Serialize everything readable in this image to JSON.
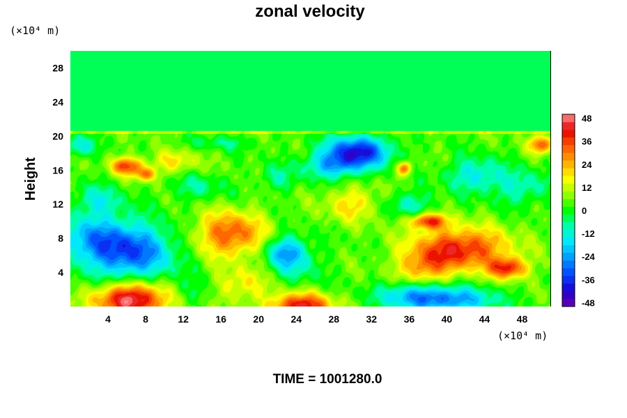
{
  "chart_data": {
    "type": "heatmap",
    "title": "zonal velocity",
    "ylabel": "Height",
    "xunit": "(×10⁴ m)",
    "yunit": "(×10⁴ m)",
    "footer": "TIME = 1001280.0",
    "xlim": [
      0,
      51
    ],
    "ylim": [
      0,
      30
    ],
    "x_ticks": [
      4,
      8,
      12,
      16,
      20,
      24,
      28,
      32,
      36,
      40,
      44,
      48
    ],
    "y_ticks": [
      4,
      8,
      12,
      16,
      20,
      24,
      28
    ],
    "colorbar": {
      "min": -50,
      "max": 50,
      "ticks": [
        48,
        36,
        24,
        12,
        0,
        -12,
        -24,
        -36,
        -48
      ],
      "colors": [
        "#6a00b0",
        "#1e00d2",
        "#0046ff",
        "#0096ff",
        "#00e6ff",
        "#00ffb4",
        "#00ff00",
        "#96ff00",
        "#ffff00",
        "#ffaa00",
        "#ff5a00",
        "#e60000",
        "#ff8c8c"
      ]
    },
    "field": {
      "background": 4,
      "upper_layer": {
        "from_height": 20.6,
        "value": -4
      },
      "features": [
        {
          "x": 6.5,
          "y": 0.8,
          "rx": 3.8,
          "ry": 2.0,
          "v": 46
        },
        {
          "x": 24.5,
          "y": 0.0,
          "rx": 3.2,
          "ry": 1.5,
          "v": 40
        },
        {
          "x": 6.5,
          "y": 6.4,
          "rx": 4.5,
          "ry": 3.3,
          "v": -34
        },
        {
          "x": 2.0,
          "y": 8.0,
          "rx": 4.0,
          "ry": 3.0,
          "v": -20
        },
        {
          "x": 17.0,
          "y": 8.5,
          "rx": 3.6,
          "ry": 2.6,
          "v": 30
        },
        {
          "x": 41.5,
          "y": 6.8,
          "rx": 5.0,
          "ry": 2.4,
          "v": 36
        },
        {
          "x": 46.5,
          "y": 4.5,
          "rx": 2.0,
          "ry": 1.2,
          "v": 33
        },
        {
          "x": 37.5,
          "y": 4.5,
          "rx": 2.8,
          "ry": 2.0,
          "v": 20
        },
        {
          "x": 30.5,
          "y": 18.2,
          "rx": 3.4,
          "ry": 1.8,
          "v": -42
        },
        {
          "x": 28.0,
          "y": 16.5,
          "rx": 3.2,
          "ry": 1.5,
          "v": -22
        },
        {
          "x": 6.0,
          "y": 16.5,
          "rx": 1.6,
          "ry": 1.0,
          "v": 33
        },
        {
          "x": 8.0,
          "y": 15.5,
          "rx": 1.2,
          "ry": 0.8,
          "v": 24
        },
        {
          "x": 23.0,
          "y": 6.5,
          "rx": 2.2,
          "ry": 1.8,
          "v": -26
        },
        {
          "x": 24.0,
          "y": 4.5,
          "rx": 2.5,
          "ry": 2.0,
          "v": -10
        },
        {
          "x": 40.0,
          "y": 0.8,
          "rx": 5.0,
          "ry": 1.5,
          "v": -30
        },
        {
          "x": 36.0,
          "y": 1.5,
          "rx": 3.5,
          "ry": 1.5,
          "v": -16
        },
        {
          "x": 13.0,
          "y": 1.8,
          "rx": 2.5,
          "ry": 1.5,
          "v": -8
        },
        {
          "x": 18.0,
          "y": 2.5,
          "rx": 3.0,
          "ry": 2.0,
          "v": 14
        },
        {
          "x": 50.0,
          "y": 19.0,
          "rx": 1.2,
          "ry": 1.0,
          "v": 30
        },
        {
          "x": 48.0,
          "y": 14.0,
          "rx": 3.0,
          "ry": 2.0,
          "v": -14
        },
        {
          "x": 43.0,
          "y": 15.5,
          "rx": 3.0,
          "ry": 2.0,
          "v": -18
        },
        {
          "x": 36.0,
          "y": 12.0,
          "rx": 2.5,
          "ry": 1.5,
          "v": -14
        },
        {
          "x": 30.0,
          "y": 12.0,
          "rx": 3.0,
          "ry": 2.0,
          "v": 15
        },
        {
          "x": 3.0,
          "y": 12.5,
          "rx": 2.5,
          "ry": 1.8,
          "v": -14
        },
        {
          "x": 13.5,
          "y": 14.0,
          "rx": 3.0,
          "ry": 1.5,
          "v": -10
        },
        {
          "x": 22.0,
          "y": 15.0,
          "rx": 2.0,
          "ry": 1.5,
          "v": -10
        },
        {
          "x": 11.0,
          "y": 17.0,
          "rx": 2.5,
          "ry": 1.3,
          "v": 14
        },
        {
          "x": 35.5,
          "y": 16.2,
          "rx": 0.8,
          "ry": 0.8,
          "v": 28
        },
        {
          "x": 38.0,
          "y": 10.0,
          "rx": 2.0,
          "ry": 0.9,
          "v": 34
        },
        {
          "x": 1.0,
          "y": 18.8,
          "rx": 1.5,
          "ry": 1.2,
          "v": -18
        },
        {
          "x": 16.0,
          "y": 19.2,
          "rx": 4.0,
          "ry": 0.8,
          "v": -8
        }
      ]
    }
  }
}
